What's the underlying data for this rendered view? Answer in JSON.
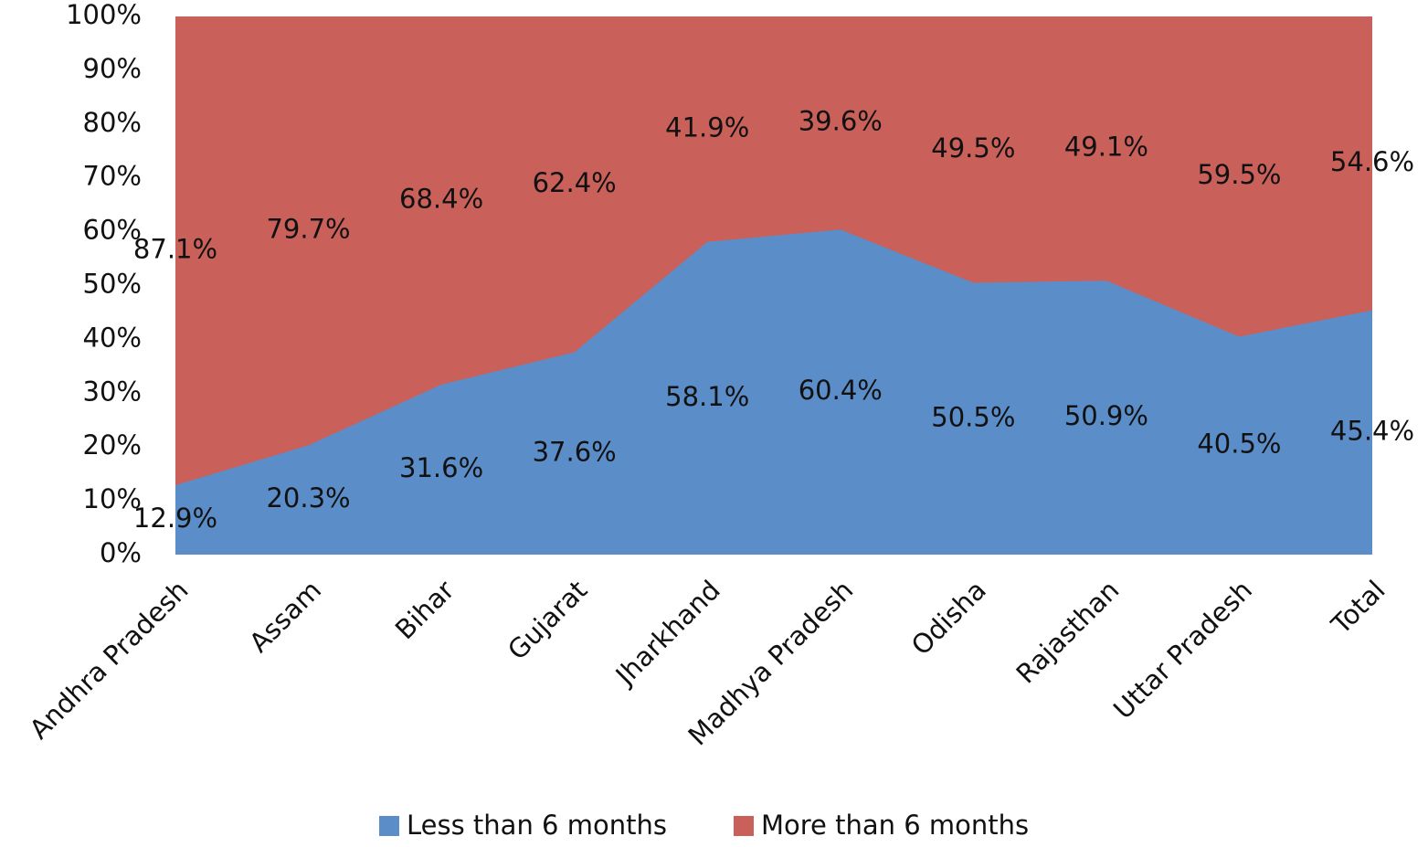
{
  "chart_data": {
    "type": "stacked_area",
    "categories": [
      "Andhra Pradesh",
      "Assam",
      "Bihar",
      "Gujarat",
      "Jharkhand",
      "Madhya Pradesh",
      "Odisha",
      "Rajasthan",
      "Uttar Pradesh",
      "Total"
    ],
    "series": [
      {
        "name": "Less than 6 months",
        "color": "#5b8ec9",
        "values": [
          12.9,
          20.3,
          31.6,
          37.6,
          58.1,
          60.4,
          50.5,
          50.9,
          40.5,
          45.4
        ],
        "value_labels": [
          "12.9%",
          "20.3%",
          "31.6%",
          "37.6%",
          "58.1%",
          "60.4%",
          "50.5%",
          "50.9%",
          "40.5%",
          "45.4%"
        ]
      },
      {
        "name": "More than 6 months",
        "color": "#c9605a",
        "values": [
          87.1,
          79.7,
          68.4,
          62.4,
          41.9,
          39.6,
          49.5,
          49.1,
          59.5,
          54.6
        ],
        "value_labels": [
          "87.1%",
          "79.7%",
          "68.4%",
          "62.4%",
          "41.9%",
          "39.6%",
          "49.5%",
          "49.1%",
          "59.5%",
          "54.6%"
        ]
      }
    ],
    "ylim": [
      0,
      100
    ],
    "yticks": [
      {
        "value": 0,
        "label": "0%"
      },
      {
        "value": 10,
        "label": "10%"
      },
      {
        "value": 20,
        "label": "20%"
      },
      {
        "value": 30,
        "label": "30%"
      },
      {
        "value": 40,
        "label": "40%"
      },
      {
        "value": 50,
        "label": "50%"
      },
      {
        "value": 60,
        "label": "60%"
      },
      {
        "value": 70,
        "label": "70%"
      },
      {
        "value": 80,
        "label": "80%"
      },
      {
        "value": 90,
        "label": "90%"
      },
      {
        "value": 100,
        "label": "100%"
      }
    ],
    "legend": "bottom"
  }
}
